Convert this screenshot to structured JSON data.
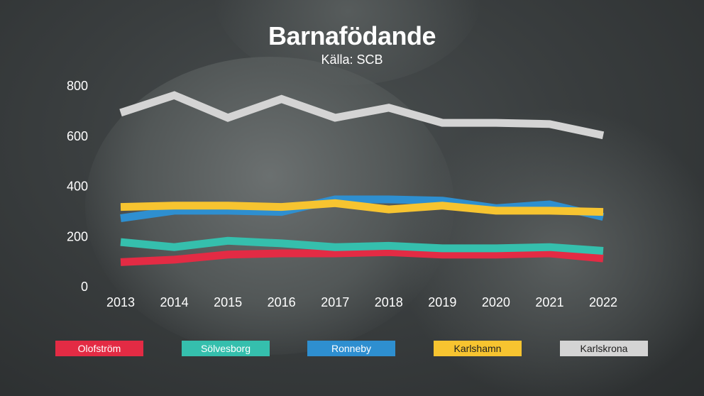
{
  "chart_data": {
    "type": "line",
    "title": "Barnafödande",
    "subtitle": "Källa: SCB",
    "x": [
      "2013",
      "2014",
      "2015",
      "2016",
      "2017",
      "2018",
      "2019",
      "2020",
      "2021",
      "2022"
    ],
    "yticks": [
      "800",
      "600",
      "400",
      "200",
      "0"
    ],
    "ylim": [
      0,
      800
    ],
    "grid": false,
    "legend_position": "bottom",
    "series": [
      {
        "name": "Olofström",
        "color": "#e32b44",
        "text_color": "#ffffff",
        "values": [
          95,
          105,
          125,
          130,
          130,
          135,
          125,
          125,
          130,
          110
        ]
      },
      {
        "name": "Sölvesborg",
        "color": "#35bfad",
        "text_color": "#ffffff",
        "values": [
          175,
          155,
          180,
          170,
          155,
          160,
          150,
          150,
          155,
          140
        ]
      },
      {
        "name": "Ronneby",
        "color": "#2e8fd0",
        "text_color": "#ffffff",
        "values": [
          270,
          300,
          300,
          295,
          345,
          345,
          340,
          310,
          325,
          275
        ]
      },
      {
        "name": "Karlshamn",
        "color": "#f7c430",
        "text_color": "#1e1e1e",
        "values": [
          315,
          320,
          320,
          315,
          330,
          305,
          320,
          300,
          300,
          295
        ]
      },
      {
        "name": "Karlskrona",
        "color": "#d4d4d4",
        "text_color": "#1e1e1e",
        "values": [
          690,
          760,
          670,
          745,
          670,
          710,
          650,
          650,
          645,
          600
        ]
      }
    ]
  }
}
